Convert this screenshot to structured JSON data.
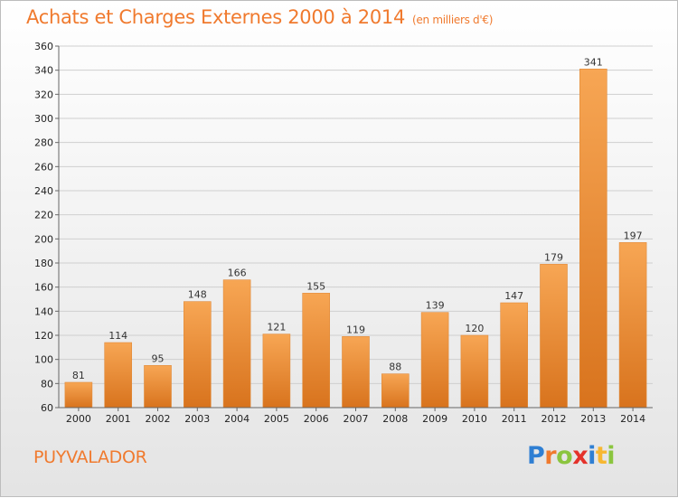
{
  "chart_data": {
    "type": "bar",
    "title": "Achats et Charges Externes 2000 à 2014",
    "unit_label": "(en milliers d'€)",
    "categories": [
      "2000",
      "2001",
      "2002",
      "2003",
      "2004",
      "2005",
      "2006",
      "2007",
      "2008",
      "2009",
      "2010",
      "2011",
      "2012",
      "2013",
      "2014"
    ],
    "values": [
      81,
      114,
      95,
      148,
      166,
      121,
      155,
      119,
      88,
      139,
      120,
      147,
      179,
      341,
      197
    ],
    "ylim": [
      60,
      360
    ],
    "yticks": [
      60,
      80,
      100,
      120,
      140,
      160,
      180,
      200,
      220,
      240,
      260,
      280,
      300,
      320,
      340,
      360
    ],
    "grid": true,
    "bar_color_top": "#f7a654",
    "bar_color_bottom": "#d8731d"
  },
  "footer": {
    "commune": "PUYVALADOR",
    "logo_letters": [
      {
        "ch": "P",
        "color": "#2f7fd3"
      },
      {
        "ch": "r",
        "color": "#f07a2e"
      },
      {
        "ch": "o",
        "color": "#8bc53f"
      },
      {
        "ch": "x",
        "color": "#e4322b"
      },
      {
        "ch": "i",
        "color": "#2f7fd3"
      },
      {
        "ch": "t",
        "color": "#f7b731"
      },
      {
        "ch": "i",
        "color": "#8bc53f"
      }
    ]
  }
}
